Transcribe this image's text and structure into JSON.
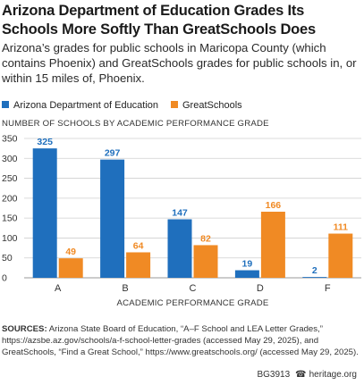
{
  "title": "Arizona Department of Education Grades Its Schools More Softly Than GreatSchools Does",
  "subtitle": "Arizona’s grades for public schools in Maricopa County (which contains Phoenix) and GreatSchools grades for public schools in, or within 15 miles of, Phoenix.",
  "colors": {
    "ade": "#1f6fbd",
    "greatschools": "#f08a24",
    "grid": "#cfcfcf"
  },
  "chart_data": {
    "type": "bar",
    "title": "",
    "ylabel": "NUMBER OF SCHOOLS BY ACADEMIC PERFORMANCE GRADE",
    "xlabel": "ACADEMIC PERFORMANCE GRADE",
    "categories": [
      "A",
      "B",
      "C",
      "D",
      "F"
    ],
    "series": [
      {
        "name": "Arizona Department of Education",
        "values": [
          325,
          297,
          147,
          19,
          2
        ]
      },
      {
        "name": "GreatSchools",
        "values": [
          49,
          64,
          82,
          166,
          111
        ]
      }
    ],
    "ylim": [
      0,
      350
    ],
    "yticks": [
      "0",
      "50",
      "100",
      "150",
      "200",
      "250",
      "300",
      "350"
    ],
    "grid": true,
    "legend": "top-left"
  },
  "source": {
    "label": "SOURCES:",
    "text": "Arizona State Board of Education, “A–F School and LEA Letter Grades,” https://azsbe.az.gov/schools/a-f-school-letter-grades (accessed May 29, 2025), and GreatSchools, “Find a Great School,” https://www.greatschools.org/ (accessed May 29, 2025)."
  },
  "footer": {
    "code": "BG3913",
    "site": "heritage.org"
  }
}
